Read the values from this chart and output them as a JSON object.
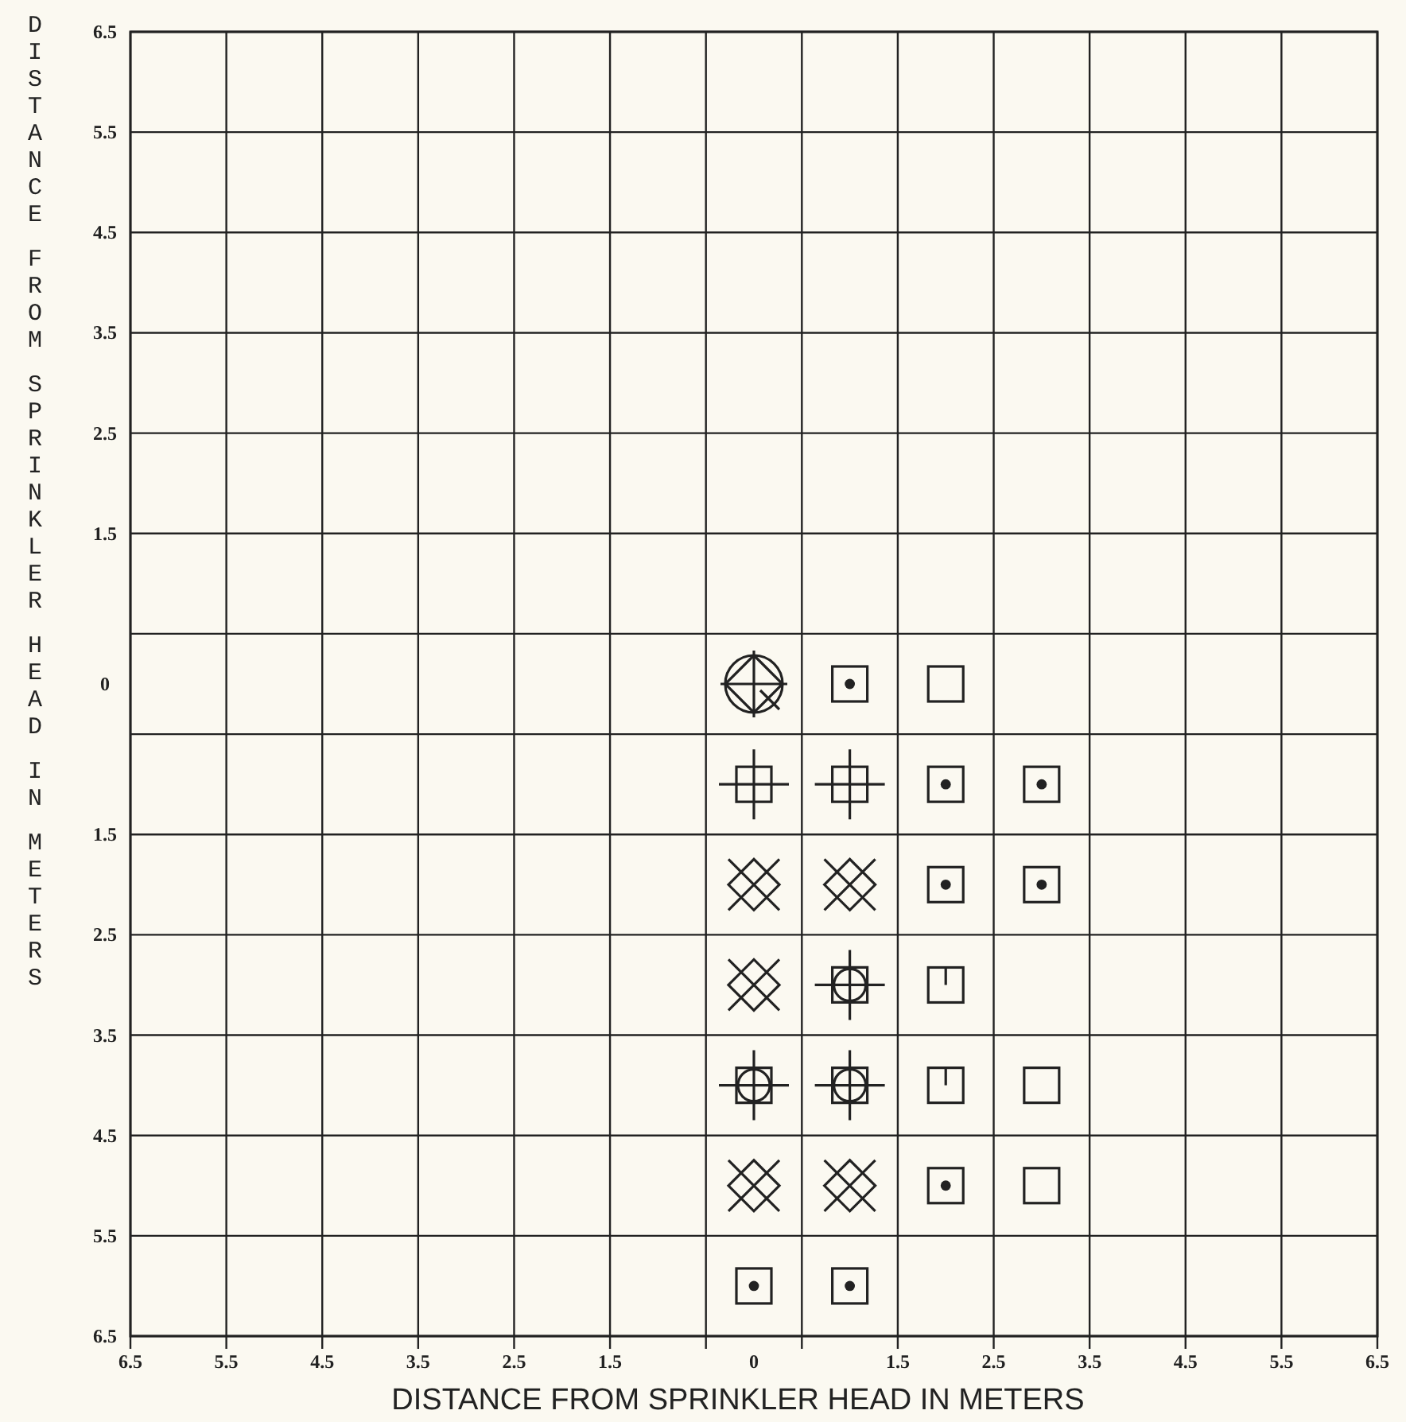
{
  "chart_data": {
    "type": "scatter",
    "xlabel": "DISTANCE FROM SPRINKLER HEAD IN METERS",
    "ylabel": "DISTANCE FROM SPRINKLER HEAD IN METERS",
    "xlim": [
      -6.5,
      6.5
    ],
    "ylim": [
      -6.5,
      6.5
    ],
    "xticks": [
      {
        "value": -6.5,
        "label": "6.5"
      },
      {
        "value": -5.5,
        "label": "5.5"
      },
      {
        "value": -4.5,
        "label": "4.5"
      },
      {
        "value": -3.5,
        "label": "3.5"
      },
      {
        "value": -2.5,
        "label": "2.5"
      },
      {
        "value": -1.5,
        "label": "1.5"
      },
      {
        "value": -0.5,
        "label": null
      },
      {
        "value": 0,
        "label": "0"
      },
      {
        "value": 0.5,
        "label": null
      },
      1.5,
      2.5,
      3.5,
      4.5,
      5.5,
      6.5
    ],
    "yticks": [
      {
        "value": -6.5,
        "label": "6.5"
      },
      {
        "value": -5.5,
        "label": "5.5"
      },
      {
        "value": -4.5,
        "label": "4.5"
      },
      {
        "value": -3.5,
        "label": "3.5"
      },
      {
        "value": -2.5,
        "label": "2.5"
      },
      {
        "value": -1.5,
        "label": "1.5"
      },
      {
        "value": -0.5,
        "label": null
      },
      {
        "value": 0,
        "label": "0"
      },
      {
        "value": 0.5,
        "label": null
      },
      1.5,
      2.5,
      3.5,
      4.5,
      5.5,
      6.5
    ],
    "grid": true,
    "series": [
      {
        "color": "#222222",
        "marker": "circle",
        "x": [
          0
        ],
        "values": [
          0
        ]
      },
      {
        "color": "#222222",
        "marker": "square",
        "x": [
          0,
          1
        ],
        "values": [
          -1,
          -1
        ]
      },
      {
        "color": "#222222",
        "marker": "cross",
        "x": [
          0,
          1,
          0,
          0,
          1
        ],
        "values": [
          -2,
          -2,
          -3,
          -5,
          -5
        ]
      },
      {
        "color": "#222222",
        "marker": "circle",
        "x": [
          1,
          0,
          1
        ],
        "values": [
          -3,
          -4,
          -4
        ]
      },
      {
        "color": "#222222",
        "marker": "square",
        "x": [
          2,
          2
        ],
        "values": [
          -3,
          -4
        ]
      },
      {
        "color": "#222222",
        "marker": "circle",
        "x": [
          1,
          2,
          3,
          2,
          3,
          2,
          0,
          1
        ],
        "values": [
          0,
          -1,
          -1,
          -2,
          -2,
          -5,
          -6,
          -6
        ]
      },
      {
        "color": "#222222",
        "marker": "square",
        "x": [
          2,
          3,
          3
        ],
        "values": [
          0,
          -4,
          -5
        ]
      }
    ]
  }
}
